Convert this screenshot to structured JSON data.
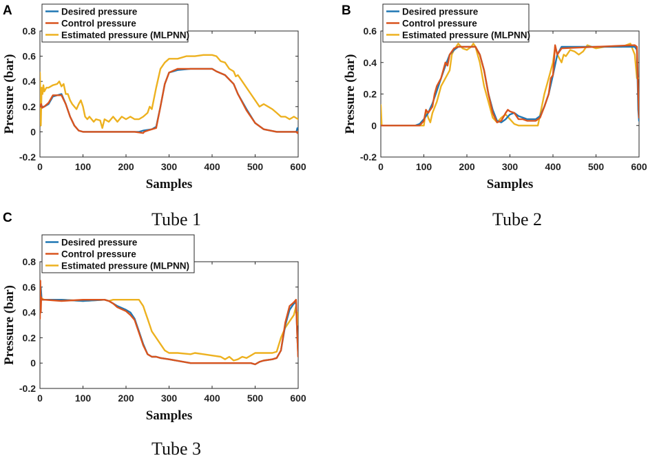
{
  "colors": {
    "desired": "#1f77b4",
    "control": "#d9541e",
    "estimated": "#edb11f"
  },
  "chart_data": [
    {
      "panel": "A",
      "caption": "Tube 1",
      "type": "line",
      "xlabel": "Samples",
      "ylabel": "Pressure (bar)",
      "xlim": [
        0,
        600
      ],
      "ylim": [
        -0.2,
        0.8
      ],
      "xticks": [
        "0",
        "100",
        "200",
        "300",
        "400",
        "500",
        "600"
      ],
      "yticks": [
        "-0.2",
        "0",
        "0.2",
        "0.4",
        "0.6",
        "0.8"
      ],
      "series": [
        {
          "name": "Desired pressure",
          "color": "#1f77b4",
          "x": [
            0,
            5,
            10,
            20,
            30,
            50,
            60,
            70,
            80,
            90,
            100,
            150,
            230,
            240,
            260,
            270,
            280,
            290,
            300,
            320,
            350,
            400,
            410,
            430,
            450,
            460,
            480,
            500,
            520,
            550,
            596,
            598,
            600
          ],
          "y": [
            0.2,
            0.2,
            0.2,
            0.22,
            0.28,
            0.3,
            0.22,
            0.12,
            0.05,
            0.01,
            0.0,
            0.0,
            0.0,
            0.01,
            0.02,
            0.04,
            0.2,
            0.38,
            0.47,
            0.49,
            0.5,
            0.5,
            0.48,
            0.45,
            0.38,
            0.3,
            0.18,
            0.07,
            0.02,
            0.0,
            0.0,
            0.03,
            0.03
          ]
        },
        {
          "name": "Control pressure",
          "color": "#d9541e",
          "x": [
            0,
            3,
            5,
            10,
            20,
            30,
            50,
            60,
            70,
            80,
            90,
            100,
            150,
            220,
            240,
            242,
            250,
            260,
            270,
            280,
            290,
            300,
            320,
            350,
            400,
            410,
            430,
            450,
            460,
            480,
            500,
            520,
            550,
            596,
            598,
            600
          ],
          "y": [
            0.2,
            0.22,
            0.19,
            0.2,
            0.23,
            0.29,
            0.29,
            0.22,
            0.12,
            0.05,
            0.01,
            0.0,
            0.0,
            0.0,
            -0.01,
            0.0,
            0.01,
            0.02,
            0.03,
            0.2,
            0.38,
            0.47,
            0.5,
            0.5,
            0.5,
            0.48,
            0.45,
            0.38,
            0.3,
            0.17,
            0.07,
            0.02,
            0.0,
            0.0,
            -0.01,
            0.0
          ]
        },
        {
          "name": "Estimated pressure (MLPNN)",
          "color": "#edb11f",
          "x": [
            0,
            2,
            4,
            6,
            8,
            10,
            15,
            20,
            30,
            40,
            45,
            50,
            55,
            60,
            65,
            70,
            75,
            80,
            85,
            90,
            95,
            100,
            105,
            110,
            115,
            120,
            125,
            130,
            140,
            145,
            150,
            160,
            170,
            180,
            190,
            200,
            210,
            220,
            230,
            240,
            250,
            255,
            260,
            270,
            280,
            290,
            300,
            320,
            340,
            360,
            380,
            400,
            410,
            420,
            430,
            440,
            450,
            455,
            460,
            470,
            480,
            490,
            500,
            510,
            520,
            530,
            540,
            550,
            560,
            570,
            580,
            590,
            600
          ],
          "y": [
            0.47,
            0.05,
            0.35,
            0.3,
            0.37,
            0.32,
            0.35,
            0.35,
            0.37,
            0.38,
            0.4,
            0.36,
            0.38,
            0.3,
            0.3,
            0.25,
            0.22,
            0.2,
            0.18,
            0.22,
            0.25,
            0.2,
            0.12,
            0.1,
            0.12,
            0.1,
            0.08,
            0.1,
            0.09,
            0.03,
            0.1,
            0.08,
            0.12,
            0.08,
            0.12,
            0.1,
            0.12,
            0.1,
            0.1,
            0.12,
            0.15,
            0.2,
            0.18,
            0.35,
            0.5,
            0.55,
            0.58,
            0.58,
            0.6,
            0.6,
            0.61,
            0.61,
            0.6,
            0.56,
            0.55,
            0.5,
            0.48,
            0.44,
            0.45,
            0.4,
            0.35,
            0.3,
            0.25,
            0.2,
            0.22,
            0.2,
            0.18,
            0.15,
            0.12,
            0.12,
            0.1,
            0.12,
            0.1
          ]
        }
      ]
    },
    {
      "panel": "B",
      "caption": "Tube 2",
      "type": "line",
      "xlabel": "Samples",
      "ylabel": "Pressure (bar)",
      "xlim": [
        0,
        600
      ],
      "ylim": [
        -0.2,
        0.6
      ],
      "xticks": [
        "0",
        "100",
        "200",
        "300",
        "400",
        "500",
        "600"
      ],
      "yticks": [
        "-0.2",
        "0",
        "0.2",
        "0.4",
        "0.6"
      ],
      "series": [
        {
          "name": "Desired pressure",
          "color": "#1f77b4",
          "x": [
            0,
            80,
            90,
            100,
            110,
            120,
            130,
            140,
            150,
            160,
            170,
            180,
            220,
            230,
            240,
            250,
            260,
            270,
            280,
            290,
            300,
            310,
            320,
            340,
            360,
            370,
            380,
            390,
            400,
            410,
            420,
            500,
            590,
            595,
            598,
            600
          ],
          "y": [
            0.0,
            0.0,
            0.01,
            0.04,
            0.08,
            0.14,
            0.22,
            0.3,
            0.38,
            0.45,
            0.48,
            0.5,
            0.5,
            0.45,
            0.35,
            0.2,
            0.1,
            0.03,
            0.02,
            0.04,
            0.07,
            0.08,
            0.06,
            0.04,
            0.04,
            0.06,
            0.12,
            0.2,
            0.32,
            0.45,
            0.5,
            0.5,
            0.5,
            0.48,
            0.1,
            0.03
          ]
        },
        {
          "name": "Control pressure",
          "color": "#d9541e",
          "x": [
            0,
            90,
            100,
            105,
            110,
            120,
            125,
            130,
            140,
            150,
            155,
            160,
            170,
            180,
            220,
            230,
            240,
            250,
            260,
            270,
            280,
            290,
            295,
            300,
            310,
            320,
            330,
            340,
            360,
            370,
            380,
            390,
            395,
            400,
            405,
            410,
            420,
            500,
            590,
            595,
            598,
            600
          ],
          "y": [
            0.0,
            0.0,
            0.03,
            0.1,
            0.08,
            0.12,
            0.2,
            0.25,
            0.3,
            0.4,
            0.38,
            0.45,
            0.49,
            0.5,
            0.5,
            0.45,
            0.35,
            0.2,
            0.08,
            0.02,
            0.03,
            0.08,
            0.1,
            0.09,
            0.08,
            0.04,
            0.04,
            0.03,
            0.03,
            0.05,
            0.12,
            0.2,
            0.3,
            0.32,
            0.51,
            0.45,
            0.49,
            0.5,
            0.51,
            0.5,
            0.2,
            0.05
          ]
        },
        {
          "name": "Estimated pressure (MLPNN)",
          "color": "#edb11f",
          "x": [
            0,
            2,
            4,
            100,
            105,
            110,
            115,
            120,
            130,
            135,
            140,
            150,
            160,
            165,
            170,
            180,
            190,
            200,
            210,
            215,
            220,
            225,
            230,
            240,
            250,
            260,
            270,
            280,
            285,
            290,
            300,
            310,
            320,
            330,
            340,
            350,
            360,
            365,
            380,
            390,
            400,
            405,
            410,
            420,
            425,
            430,
            440,
            450,
            460,
            470,
            480,
            500,
            520,
            540,
            560,
            580,
            590,
            595,
            600
          ],
          "y": [
            0.13,
            0.0,
            0.0,
            0.0,
            0.1,
            0.05,
            0.02,
            0.08,
            0.15,
            0.2,
            0.25,
            0.3,
            0.35,
            0.45,
            0.48,
            0.52,
            0.49,
            0.48,
            0.5,
            0.52,
            0.5,
            0.45,
            0.4,
            0.25,
            0.15,
            0.05,
            0.02,
            0.05,
            0.06,
            0.07,
            0.04,
            0.01,
            0.0,
            0.0,
            0.0,
            0.0,
            0.0,
            0.0,
            0.2,
            0.3,
            0.4,
            0.5,
            0.45,
            0.4,
            0.45,
            0.44,
            0.48,
            0.47,
            0.45,
            0.47,
            0.51,
            0.49,
            0.5,
            0.5,
            0.5,
            0.52,
            0.45,
            0.3,
            0.3
          ]
        }
      ]
    },
    {
      "panel": "C",
      "caption": "Tube 3",
      "type": "line",
      "xlabel": "Samples",
      "ylabel": "Pressure (bar)",
      "xlim": [
        0,
        600
      ],
      "ylim": [
        -0.2,
        0.8
      ],
      "xticks": [
        "0",
        "100",
        "200",
        "300",
        "400",
        "500",
        "600"
      ],
      "yticks": [
        "-0.2",
        "0",
        "0.2",
        "0.4",
        "0.6",
        "0.8"
      ],
      "series": [
        {
          "name": "Desired pressure",
          "color": "#1f77b4",
          "x": [
            0,
            2,
            4,
            10,
            50,
            100,
            150,
            160,
            170,
            180,
            200,
            210,
            220,
            230,
            240,
            250,
            260,
            270,
            280,
            300,
            350,
            400,
            450,
            480,
            490,
            500,
            510,
            520,
            540,
            550,
            560,
            570,
            580,
            590,
            595,
            598,
            600
          ],
          "y": [
            0.5,
            0.6,
            0.5,
            0.5,
            0.5,
            0.49,
            0.5,
            0.49,
            0.47,
            0.45,
            0.42,
            0.4,
            0.35,
            0.25,
            0.15,
            0.07,
            0.05,
            0.05,
            0.04,
            0.03,
            0.0,
            0.0,
            0.0,
            0.0,
            0.0,
            -0.01,
            0.01,
            0.02,
            0.03,
            0.04,
            0.1,
            0.3,
            0.42,
            0.47,
            0.48,
            0.2,
            0.05
          ]
        },
        {
          "name": "Control pressure",
          "color": "#d9541e",
          "x": [
            0,
            1,
            2,
            3,
            5,
            10,
            50,
            100,
            150,
            160,
            170,
            180,
            200,
            210,
            220,
            230,
            240,
            250,
            260,
            270,
            280,
            300,
            350,
            400,
            450,
            480,
            490,
            500,
            510,
            520,
            540,
            550,
            560,
            570,
            580,
            590,
            595,
            598,
            600
          ],
          "y": [
            0.35,
            0.65,
            0.4,
            0.52,
            0.5,
            0.5,
            0.49,
            0.5,
            0.5,
            0.49,
            0.47,
            0.44,
            0.41,
            0.38,
            0.34,
            0.24,
            0.14,
            0.07,
            0.05,
            0.05,
            0.04,
            0.03,
            0.0,
            0.0,
            0.0,
            0.0,
            0.0,
            -0.01,
            0.01,
            0.02,
            0.03,
            0.04,
            0.1,
            0.32,
            0.45,
            0.48,
            0.5,
            0.2,
            0.05
          ]
        },
        {
          "name": "Estimated pressure (MLPNN)",
          "color": "#edb11f",
          "x": [
            0,
            2,
            4,
            10,
            50,
            100,
            150,
            160,
            170,
            180,
            200,
            220,
            230,
            240,
            245,
            250,
            255,
            260,
            270,
            280,
            290,
            300,
            320,
            350,
            360,
            380,
            400,
            420,
            430,
            440,
            450,
            460,
            470,
            480,
            490,
            500,
            510,
            520,
            540,
            550,
            560,
            570,
            580,
            590,
            595,
            598,
            600
          ],
          "y": [
            0.48,
            0.5,
            0.51,
            0.5,
            0.5,
            0.49,
            0.5,
            0.49,
            0.5,
            0.5,
            0.5,
            0.5,
            0.5,
            0.45,
            0.4,
            0.35,
            0.3,
            0.25,
            0.2,
            0.15,
            0.1,
            0.08,
            0.08,
            0.07,
            0.08,
            0.07,
            0.06,
            0.05,
            0.03,
            0.05,
            0.02,
            0.03,
            0.05,
            0.04,
            0.06,
            0.08,
            0.08,
            0.08,
            0.08,
            0.09,
            0.2,
            0.28,
            0.33,
            0.38,
            0.45,
            0.3,
            0.4
          ]
        }
      ]
    }
  ]
}
